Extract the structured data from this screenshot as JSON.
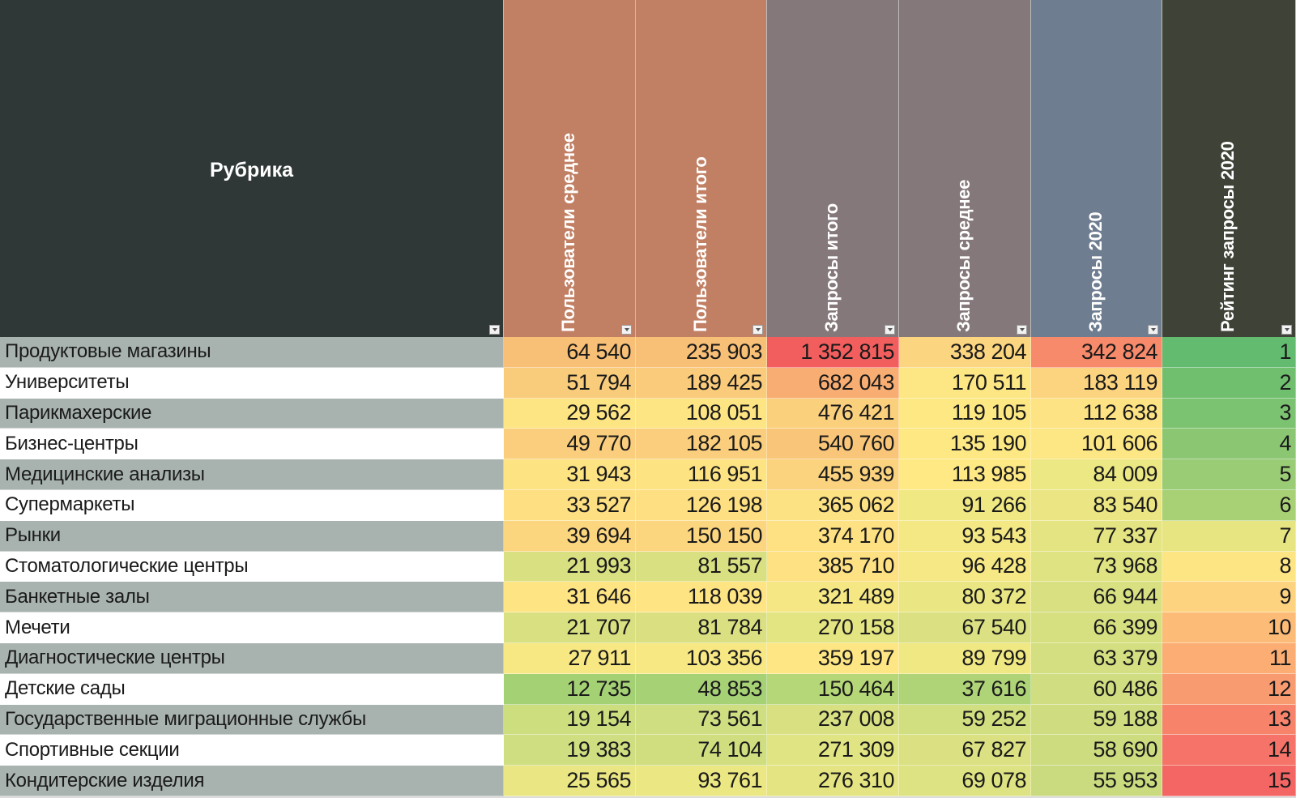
{
  "headers": [
    {
      "label": "Рубрика",
      "bg": "#2f3837"
    },
    {
      "label": "Пользователи среднее",
      "bg": "#c17f63"
    },
    {
      "label": "Пользователи итого",
      "bg": "#c17f63"
    },
    {
      "label": "Запросы итого",
      "bg": "#85787a"
    },
    {
      "label": "Запросы среднее",
      "bg": "#85787a"
    },
    {
      "label": "Запросы 2020",
      "bg": "#6f7d91"
    },
    {
      "label": "Рейтинг запросы 2020",
      "bg": "#3f4337"
    }
  ],
  "rows": [
    {
      "name": "Продуктовые магазины",
      "values": [
        "64 540",
        "235 903",
        "1 352 815",
        "338 204",
        "342 824",
        "1"
      ],
      "colors": [
        "#f8bf76",
        "#f8bf76",
        "#f25e5e",
        "#fbd57f",
        "#f78a6b",
        "#62bb6f"
      ]
    },
    {
      "name": "Университеты",
      "values": [
        "51 794",
        "189 425",
        "682 043",
        "170 511",
        "183 119",
        "2"
      ],
      "colors": [
        "#f9cc7c",
        "#f9cb7a",
        "#f8ae72",
        "#fde684",
        "#fcd47f",
        "#70bf6f"
      ]
    },
    {
      "name": "Парикмахерские",
      "values": [
        "29 562",
        "108 051",
        "476 421",
        "119 105",
        "112 638",
        "3"
      ],
      "colors": [
        "#fee583",
        "#fee583",
        "#fad07d",
        "#fde884",
        "#fde383",
        "#7cc371"
      ]
    },
    {
      "name": "Бизнес-центры",
      "values": [
        "49 770",
        "182 105",
        "540 760",
        "135 190",
        "101 606",
        "4"
      ],
      "colors": [
        "#face7c",
        "#face7c",
        "#f9c679",
        "#fde884",
        "#fde784",
        "#8bc772"
      ]
    },
    {
      "name": "Медицинские анализы",
      "values": [
        "31 943",
        "116 951",
        "455 939",
        "113 985",
        "84 009",
        "5"
      ],
      "colors": [
        "#fee383",
        "#fee383",
        "#fbd37f",
        "#fee984",
        "#ece883",
        "#99cc74"
      ]
    },
    {
      "name": "Супермаркеты",
      "values": [
        "33 527",
        "126 198",
        "365 062",
        "91 266",
        "83 540",
        "6"
      ],
      "colors": [
        "#fee083",
        "#fedf82",
        "#fde283",
        "#f0e883",
        "#ebe683",
        "#a8d075"
      ]
    },
    {
      "name": "Рынки",
      "values": [
        "39 694",
        "150 150",
        "374 170",
        "93 543",
        "77 337",
        "7"
      ],
      "colors": [
        "#fcd67f",
        "#fcd67f",
        "#fde182",
        "#f3e884",
        "#e4e482",
        "#e7e482"
      ]
    },
    {
      "name": "Стоматологические центры",
      "values": [
        "21 993",
        "81 557",
        "385 710",
        "96 428",
        "73 968",
        "8"
      ],
      "colors": [
        "#d9e081",
        "#d9e081",
        "#fde183",
        "#f6e884",
        "#dfe382",
        "#fee583"
      ]
    },
    {
      "name": "Банкетные залы",
      "values": [
        "31 646",
        "118 039",
        "321 489",
        "80 372",
        "66 944",
        "9"
      ],
      "colors": [
        "#fee483",
        "#fee483",
        "#f5e884",
        "#e9e683",
        "#d8e082",
        "#fdd37f"
      ]
    },
    {
      "name": "Мечети",
      "values": [
        "21 707",
        "81 784",
        "270 158",
        "67 540",
        "66 399",
        "10"
      ],
      "colors": [
        "#d9e081",
        "#dae081",
        "#e3e482",
        "#dbe182",
        "#d7e081",
        "#fcbb77"
      ]
    },
    {
      "name": "Диагностические центры",
      "values": [
        "27 911",
        "103 356",
        "359 197",
        "89 799",
        "63 379",
        "11"
      ],
      "colors": [
        "#f8e884",
        "#f7e884",
        "#fee684",
        "#f0e883",
        "#d4df81",
        "#fbad73"
      ]
    },
    {
      "name": "Детские сады",
      "values": [
        "12 735",
        "48 853",
        "150 464",
        "37 616",
        "60 486",
        "12"
      ],
      "colors": [
        "#a5d175",
        "#a6d175",
        "#b6d777",
        "#aed477",
        "#d0dd80",
        "#f99b70"
      ]
    },
    {
      "name": "Государственные миграционные службы",
      "values": [
        "19 154",
        "73 561",
        "237 008",
        "59 252",
        "59 188",
        "13"
      ],
      "colors": [
        "#cdde7f",
        "#cfde80",
        "#d8e081",
        "#d2df80",
        "#cfdd80",
        "#f7836b"
      ]
    },
    {
      "name": "Спортивные секции",
      "values": [
        "19 383",
        "74 104",
        "271 309",
        "67 827",
        "58 690",
        "14"
      ],
      "colors": [
        "#cfde80",
        "#d0de80",
        "#e1e482",
        "#dbe182",
        "#cedc80",
        "#f57368"
      ]
    },
    {
      "name": "Кондитерские изделия",
      "values": [
        "25 565",
        "93 761",
        "276 310",
        "69 078",
        "55 953",
        "15"
      ],
      "colors": [
        "#eae683",
        "#ebe783",
        "#e4e482",
        "#dde282",
        "#cadb7f",
        "#f36664"
      ]
    }
  ]
}
